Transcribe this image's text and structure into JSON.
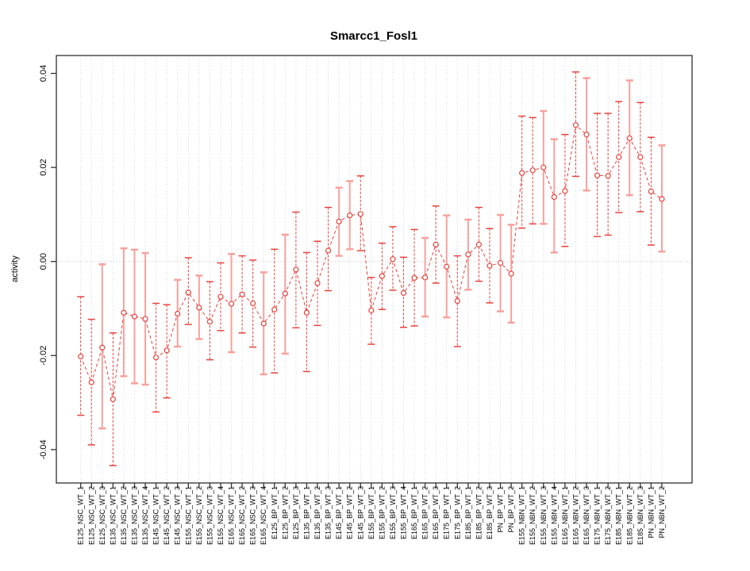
{
  "title": "Smarcc1_Fosl1",
  "ylabel": "activity",
  "chart_data": {
    "type": "line",
    "subtype": "points-with-error-bars",
    "title": "Smarcc1_Fosl1",
    "xlabel": "",
    "ylabel": "activity",
    "ylim": [
      -0.0471,
      0.0438
    ],
    "yticks": [
      -0.04,
      -0.02,
      0.0,
      0.02,
      0.04
    ],
    "ytick_labels": [
      "-0.04",
      "-0.02",
      "0.00",
      "0.02",
      "0.04"
    ],
    "grid": "vertical dotted line per category, dotted horizontal line at 0",
    "legend": "none",
    "marker": "open-circle",
    "line_style": "dashed",
    "colors": {
      "series": "#e8413c",
      "solid_bar": "#f7a19c",
      "grid": "#dcdcdc",
      "zero_line": "#c9c9c9",
      "axis": "#2f2f2f",
      "background": "#ffffff"
    },
    "categories": [
      "E125_NSC_WT_1",
      "E125_NSC_WT_2",
      "E125_NSC_WT_3",
      "E135_NSC_WT_1",
      "E135_NSC_WT_2",
      "E135_NSC_WT_3",
      "E135_NSC_WT_4",
      "E145_NSC_WT_1",
      "E145_NSC_WT_2",
      "E145_NSC_WT_3",
      "E155_NSC_WT_1",
      "E155_NSC_WT_2",
      "E155_NSC_WT_3",
      "E155_NSC_WT_4",
      "E165_NSC_WT_1",
      "E165_NSC_WT_2",
      "E165_NSC_WT_3",
      "E165_NSC_WT_4",
      "E125_BP_WT_1",
      "E125_BP_WT_2",
      "E125_BP_WT_3",
      "E135_BP_WT_1",
      "E135_BP_WT_2",
      "E135_BP_WT_3",
      "E145_BP_WT_1",
      "E145_BP_WT_2",
      "E145_BP_WT_3",
      "E155_BP_WT_1",
      "E155_BP_WT_2",
      "E155_BP_WT_3",
      "E155_BP_WT_4",
      "E165_BP_WT_1",
      "E165_BP_WT_2",
      "E165_BP_WT_3",
      "E175_BP_WT_1",
      "E175_BP_WT_2",
      "E185_BP_WT_1",
      "E185_BP_WT_2",
      "E185_BP_WT_3",
      "PN_BP_WT_1",
      "PN_BP_WT_2",
      "E155_NBN_WT_1",
      "E155_NBN_WT_2",
      "E155_NBN_WT_3",
      "E155_NBN_WT_4",
      "E165_NBN_WT_1",
      "E165_NBN_WT_2",
      "E165_NBN_WT_3",
      "E175_NBN_WT_1",
      "E175_NBN_WT_2",
      "E185_NBN_WT_1",
      "E185_NBN_WT_2",
      "E185_NBN_WT_3",
      "PN_NBN_WT_1",
      "PN_NBN_WT_2"
    ],
    "series": [
      {
        "name": "activity",
        "values": [
          -0.0202,
          -0.0257,
          -0.0183,
          -0.0293,
          -0.0109,
          -0.0117,
          -0.0122,
          -0.0204,
          -0.0189,
          -0.0111,
          -0.0066,
          -0.0098,
          -0.0128,
          -0.0075,
          -0.009,
          -0.007,
          -0.0089,
          -0.0132,
          -0.0102,
          -0.0068,
          -0.0017,
          -0.0109,
          -0.0046,
          0.0023,
          0.0085,
          0.0098,
          0.0101,
          -0.0104,
          -0.0031,
          0.0005,
          -0.0067,
          -0.0035,
          -0.0034,
          0.0036,
          -0.0011,
          -0.0084,
          0.0015,
          0.0036,
          -0.0009,
          -0.0003,
          -0.0026,
          0.0188,
          0.0194,
          0.02,
          0.0137,
          0.015,
          0.029,
          0.027,
          0.0183,
          0.0182,
          0.0222,
          0.0262,
          0.0222,
          0.0149,
          0.0133
        ],
        "lower": [
          -0.0327,
          -0.039,
          -0.0355,
          -0.0434,
          -0.0244,
          -0.0259,
          -0.0262,
          -0.032,
          -0.029,
          -0.0181,
          -0.0134,
          -0.0165,
          -0.0209,
          -0.0147,
          -0.0193,
          -0.0152,
          -0.0182,
          -0.024,
          -0.0237,
          -0.0196,
          -0.0141,
          -0.0234,
          -0.0136,
          -0.0062,
          0.0012,
          0.0026,
          0.0023,
          -0.0176,
          -0.0102,
          -0.0061,
          -0.014,
          -0.0137,
          -0.0117,
          -0.0046,
          -0.0119,
          -0.0181,
          -0.006,
          -0.0042,
          -0.0088,
          -0.0106,
          -0.013,
          0.0071,
          0.008,
          0.008,
          0.0019,
          0.0032,
          0.0181,
          0.0151,
          0.0053,
          0.0056,
          0.0104,
          0.0141,
          0.0106,
          0.0035,
          0.0021
        ],
        "upper": [
          -0.0075,
          -0.0123,
          -0.0006,
          -0.0152,
          0.0028,
          0.0025,
          0.0018,
          -0.0089,
          -0.0092,
          -0.0039,
          0.0008,
          -0.003,
          -0.0043,
          -0.0003,
          0.0016,
          0.0012,
          0.0003,
          -0.0023,
          0.0026,
          0.0057,
          0.0105,
          0.0019,
          0.0043,
          0.0115,
          0.0157,
          0.0171,
          0.0182,
          -0.0034,
          0.0039,
          0.0074,
          0.0009,
          0.0068,
          0.005,
          0.0118,
          0.0098,
          0.0012,
          0.0089,
          0.0115,
          0.007,
          0.0099,
          0.0078,
          0.0309,
          0.0306,
          0.032,
          0.026,
          0.027,
          0.0403,
          0.039,
          0.0315,
          0.0315,
          0.034,
          0.0385,
          0.0338,
          0.0264,
          0.0247
        ],
        "bar_styles": [
          "dashed",
          "dashed",
          "solid",
          "dashed",
          "solid",
          "solid",
          "solid",
          "dashed",
          "dashed",
          "solid",
          "dashed",
          "solid",
          "dashed",
          "dashed",
          "solid",
          "dashed",
          "dashed",
          "solid",
          "dashed",
          "solid",
          "dashed",
          "dashed",
          "dashed",
          "dashed",
          "solid",
          "solid",
          "dashed",
          "dashed",
          "dashed",
          "dashed",
          "dashed",
          "dashed",
          "solid",
          "dashed",
          "solid",
          "dashed",
          "solid",
          "dashed",
          "dashed",
          "solid",
          "solid",
          "dashed",
          "dashed",
          "solid",
          "solid",
          "dashed",
          "dashed",
          "solid",
          "dashed",
          "dashed",
          "dashed",
          "solid",
          "dashed",
          "dashed",
          "solid"
        ]
      }
    ]
  }
}
